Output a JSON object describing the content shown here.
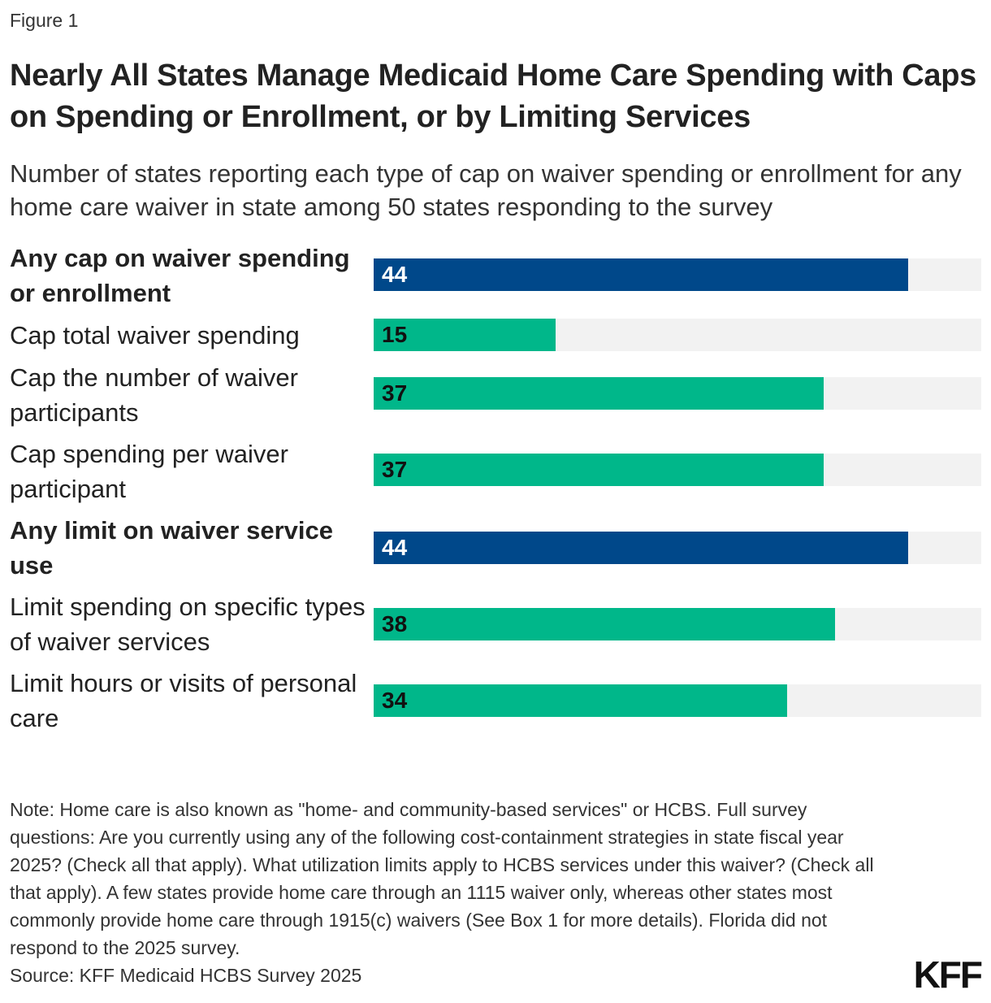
{
  "figure_label": "Figure 1",
  "chart_data": {
    "type": "bar",
    "orientation": "horizontal",
    "title": "Nearly All States Manage Medicaid Home Care Spending with Caps on Spending or Enrollment, or by Limiting Services",
    "subtitle": "Number of states reporting each type of cap on waiver spending or enrollment for any home care waiver in state among 50 states responding to the survey",
    "xlim": [
      0,
      50
    ],
    "grid": false,
    "categories": [
      "Any cap on waiver spending or enrollment",
      "Cap total waiver spending",
      "Cap the number of waiver participants",
      "Cap spending per waiver participant",
      "Any limit on waiver service use",
      "Limit spending on specific types of waiver services",
      "Limit hours or visits of personal care"
    ],
    "values": [
      44,
      15,
      37,
      37,
      44,
      38,
      34
    ],
    "bold_categories": [
      true,
      false,
      false,
      false,
      true,
      false,
      false
    ],
    "colors": {
      "summary": "#00488a",
      "detail": "#00b78a",
      "track": "#f2f2f2",
      "summary_text": "#ffffff",
      "detail_text": "#111111"
    }
  },
  "note": "Note: Home care is also known as \"home- and community-based services\" or HCBS. Full survey questions: Are you currently using any of the following cost-containment strategies in state fiscal year 2025? (Check all that apply). What utilization limits apply to HCBS services under this waiver? (Check all that apply). A few states provide home care through an 1115 waiver only, whereas other states most commonly provide home care through 1915(c) waivers (See Box 1 for more details). Florida did not respond to the 2025 survey.",
  "source": "Source: KFF Medicaid HCBS Survey 2025",
  "logo_text": "KFF"
}
